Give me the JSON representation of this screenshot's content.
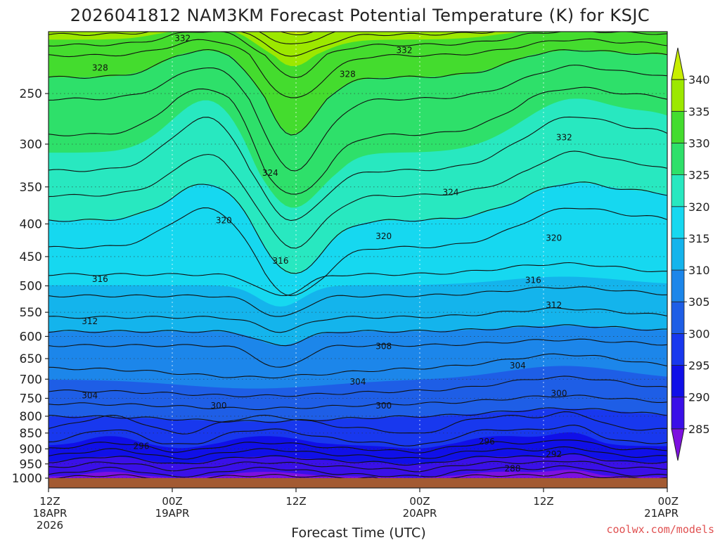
{
  "chart_data": {
    "type": "heatmap",
    "title": "2026041812 NAM3KM Forecast Potential Temperature (K) for KSJC",
    "xlabel": "Forecast Time (UTC)",
    "ylabel": "",
    "credit": "coolwx.com/models",
    "y_scale": "log-pressure",
    "y_ticks": [
      250,
      300,
      350,
      400,
      450,
      500,
      550,
      600,
      650,
      700,
      750,
      800,
      850,
      900,
      950,
      1000
    ],
    "ylim": [
      1000,
      200
    ],
    "x_ticks": [
      {
        "hour": 0,
        "lines": [
          "12Z",
          "18APR",
          "2026"
        ]
      },
      {
        "hour": 12,
        "lines": [
          "00Z",
          "19APR"
        ]
      },
      {
        "hour": 24,
        "lines": [
          "12Z"
        ]
      },
      {
        "hour": 36,
        "lines": [
          "00Z",
          "20APR"
        ]
      },
      {
        "hour": 48,
        "lines": [
          "12Z"
        ]
      },
      {
        "hour": 60,
        "lines": [
          "00Z",
          "21APR"
        ]
      }
    ],
    "xlim": [
      0,
      60
    ],
    "grid": true,
    "colorbar": {
      "levels": [
        285,
        290,
        295,
        300,
        305,
        310,
        315,
        320,
        325,
        330,
        335,
        340
      ],
      "colors": [
        "#7d10e0",
        "#3a10e8",
        "#1010e8",
        "#1838ee",
        "#1e5ee6",
        "#1c86ea",
        "#14b4ec",
        "#16d8f0",
        "#28e8c0",
        "#2ee06a",
        "#44dc2e",
        "#9ce800",
        "#c8ee00"
      ]
    },
    "contour_labels": [
      {
        "text": "332",
        "t": 13.0,
        "p": 205
      },
      {
        "text": "332",
        "t": 34.5,
        "p": 214
      },
      {
        "text": "332",
        "t": 50.0,
        "p": 293
      },
      {
        "text": "328",
        "t": 5.0,
        "p": 228
      },
      {
        "text": "328",
        "t": 29.0,
        "p": 233
      },
      {
        "text": "324",
        "t": 21.5,
        "p": 333
      },
      {
        "text": "324",
        "t": 39.0,
        "p": 357
      },
      {
        "text": "320",
        "t": 17.0,
        "p": 395
      },
      {
        "text": "320",
        "t": 32.5,
        "p": 418
      },
      {
        "text": "320",
        "t": 49.0,
        "p": 421
      },
      {
        "text": "316",
        "t": 22.5,
        "p": 457
      },
      {
        "text": "316",
        "t": 5.0,
        "p": 488
      },
      {
        "text": "316",
        "t": 47.0,
        "p": 490
      },
      {
        "text": "312",
        "t": 4.0,
        "p": 568
      },
      {
        "text": "312",
        "t": 49.0,
        "p": 536
      },
      {
        "text": "308",
        "t": 32.5,
        "p": 622
      },
      {
        "text": "304",
        "t": 45.5,
        "p": 667
      },
      {
        "text": "304",
        "t": 30.0,
        "p": 707
      },
      {
        "text": "304",
        "t": 4.0,
        "p": 742
      },
      {
        "text": "300",
        "t": 16.5,
        "p": 770
      },
      {
        "text": "300",
        "t": 32.5,
        "p": 770
      },
      {
        "text": "300",
        "t": 49.5,
        "p": 737
      },
      {
        "text": "296",
        "t": 9.0,
        "p": 891
      },
      {
        "text": "296",
        "t": 42.5,
        "p": 877
      },
      {
        "text": "292",
        "t": 49.0,
        "p": 918
      },
      {
        "text": "288",
        "t": 45.0,
        "p": 966
      }
    ],
    "isentrope_offsets": [
      {
        "theta": 340,
        "d": [
          0,
          0,
          0,
          0,
          0,
          0,
          0,
          0,
          0,
          0,
          0,
          0,
          0
        ]
      },
      {
        "theta": 336,
        "d": [
          0,
          0,
          0,
          0,
          0,
          0,
          0,
          0,
          0,
          0,
          0,
          0,
          0
        ]
      }
    ]
  }
}
